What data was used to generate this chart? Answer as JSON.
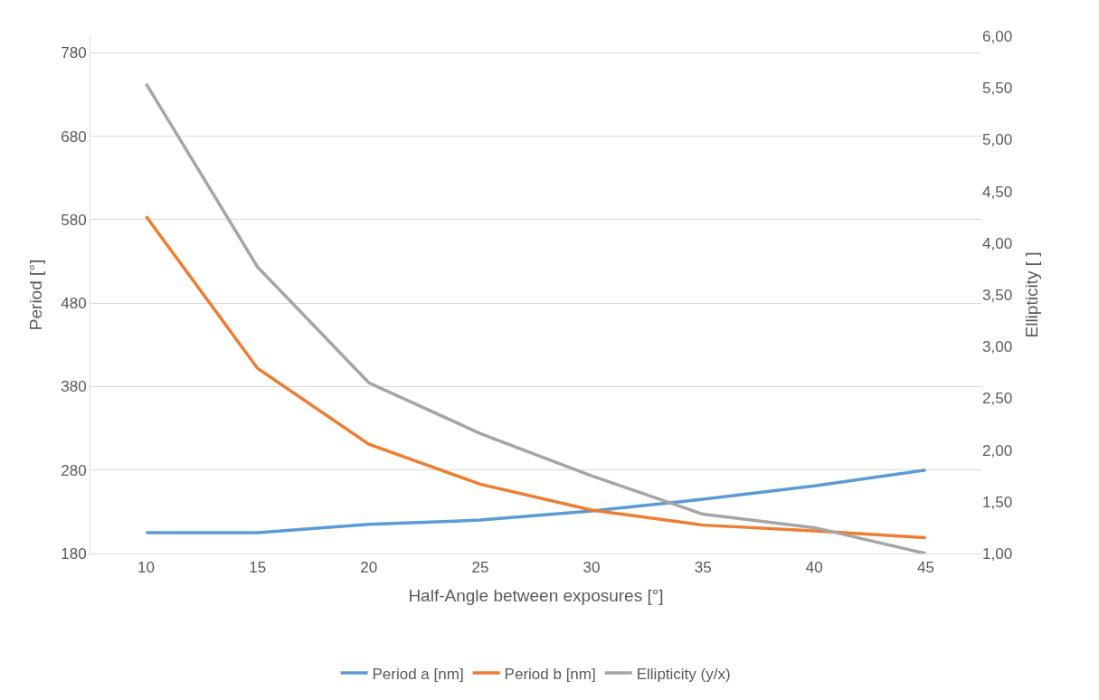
{
  "chart_data": {
    "type": "line",
    "xlabel": "Half-Angle between exposures [°]",
    "ylabel": "Period [°]",
    "y2label": "Ellipticity [ ]",
    "categories": [
      "10",
      "15",
      "20",
      "25",
      "30",
      "35",
      "40",
      "45"
    ],
    "series": [
      {
        "name": "Period a [nm]",
        "color": "#5b9bd5",
        "values": [
          205,
          205,
          215,
          220,
          231,
          245,
          261,
          280
        ]
      },
      {
        "name": "Period b [nm]",
        "color": "#ed7d31",
        "values": [
          584,
          402,
          311,
          263,
          232,
          214,
          207,
          199
        ]
      },
      {
        "name": "Ellipticity (y/x)",
        "color": "#a5a5a5",
        "axis": "y2",
        "values": [
          5.54,
          3.77,
          2.65,
          2.16,
          1.75,
          1.38,
          1.25,
          1.0
        ]
      }
    ],
    "ylim": [
      180,
      800
    ],
    "yticks": [
      180,
      280,
      380,
      480,
      580,
      680,
      780
    ],
    "y2lim": [
      1,
      6
    ],
    "y2ticks": [
      {
        "value": 1,
        "label": "1,00"
      },
      {
        "value": 1.5,
        "label": "1,50"
      },
      {
        "value": 2,
        "label": "2,00"
      },
      {
        "value": 2.5,
        "label": "2,50"
      },
      {
        "value": 3,
        "label": "3,00"
      },
      {
        "value": 3.5,
        "label": "3,50"
      },
      {
        "value": 4,
        "label": "4,00"
      },
      {
        "value": 4.5,
        "label": "4,50"
      },
      {
        "value": 5,
        "label": "5,00"
      },
      {
        "value": 5.5,
        "label": "5,50"
      },
      {
        "value": 6,
        "label": "6,00"
      }
    ],
    "grid": "y",
    "legend": "bottom",
    "marker": "none",
    "line_style": "solid"
  }
}
